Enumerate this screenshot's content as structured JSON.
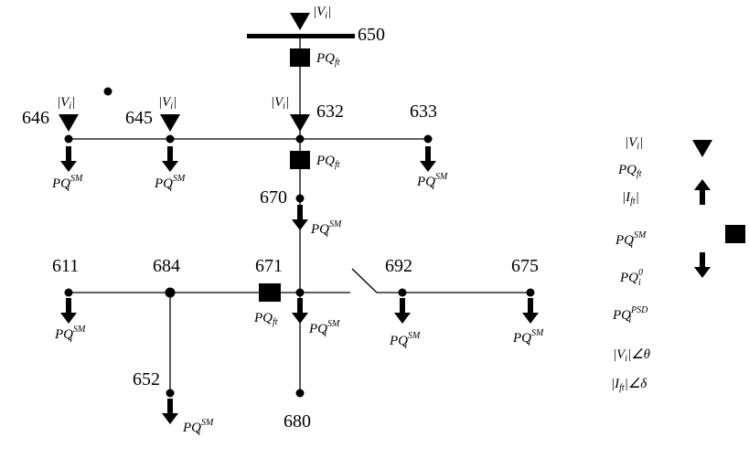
{
  "diagram": {
    "bus_labels": {
      "b650": "650",
      "b646": "646",
      "b645": "645",
      "b632": "632",
      "b633": "633",
      "b670": "670",
      "b611": "611",
      "b684": "684",
      "b671": "671",
      "b692": "692",
      "b675": "675",
      "b652": "652",
      "b680": "680"
    },
    "labels": {
      "v_mag": "|V",
      "v_mag_close": "|",
      "i": "i",
      "pq": "PQ",
      "ft": "ft",
      "sm": "SM",
      "i_mag": "|I",
      "zero": "0",
      "psd": "PSD",
      "angle_theta": "∠θ",
      "angle_delta": "∠δ"
    }
  },
  "legend": {
    "row_v": "|V",
    "row_pqft": "PQ",
    "row_ift": "|I",
    "row_pqsm": "PQ",
    "row_pq0": "PQ",
    "row_pqpsd": "PQ",
    "row_vangle": "|V",
    "row_iangle": "|I"
  }
}
